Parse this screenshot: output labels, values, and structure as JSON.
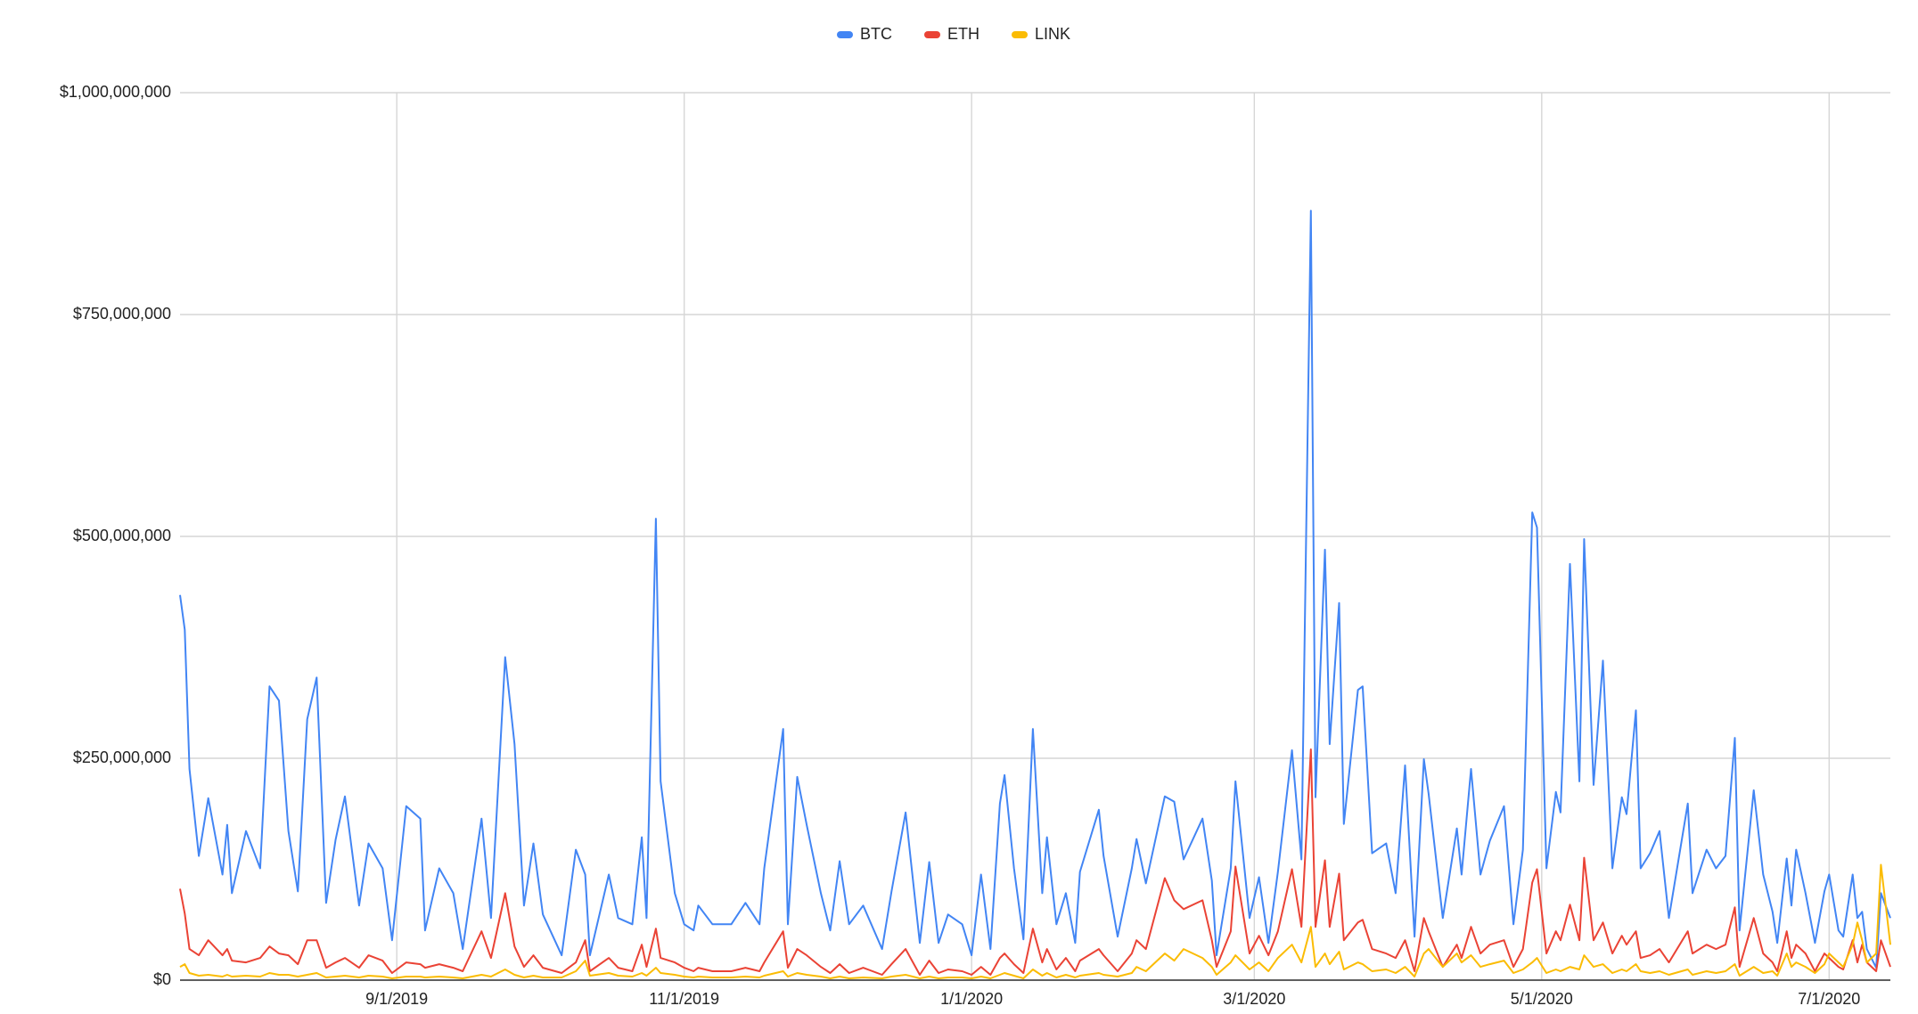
{
  "chart_data": {
    "type": "line",
    "x": [
      "7/17/2019",
      "7/18/2019",
      "7/19/2019",
      "7/21/2019",
      "7/23/2019",
      "7/26/2019",
      "7/27/2019",
      "7/28/2019",
      "7/31/2019",
      "8/3/2019",
      "8/5/2019",
      "8/7/2019",
      "8/9/2019",
      "8/11/2019",
      "8/13/2019",
      "8/15/2019",
      "8/17/2019",
      "8/19/2019",
      "8/21/2019",
      "8/24/2019",
      "8/26/2019",
      "8/29/2019",
      "8/31/2019",
      "9/3/2019",
      "9/6/2019",
      "9/7/2019",
      "9/10/2019",
      "9/13/2019",
      "9/15/2019",
      "9/19/2019",
      "9/21/2019",
      "9/24/2019",
      "9/26/2019",
      "9/28/2019",
      "9/30/2019",
      "10/2/2019",
      "10/6/2019",
      "10/9/2019",
      "10/11/2019",
      "10/12/2019",
      "10/16/2019",
      "10/18/2019",
      "10/21/2019",
      "10/23/2019",
      "10/24/2019",
      "10/26/2019",
      "10/27/2019",
      "10/30/2019",
      "11/1/2019",
      "11/3/2019",
      "11/4/2019",
      "11/7/2019",
      "11/11/2019",
      "11/14/2019",
      "11/17/2019",
      "11/18/2019",
      "11/22/2019",
      "11/23/2019",
      "11/25/2019",
      "11/27/2019",
      "11/30/2019",
      "12/2/2019",
      "12/4/2019",
      "12/6/2019",
      "12/9/2019",
      "12/13/2019",
      "12/15/2019",
      "12/18/2019",
      "12/21/2019",
      "12/23/2019",
      "12/25/2019",
      "12/27/2019",
      "12/30/2019",
      "1/1/2020",
      "1/3/2020",
      "1/5/2020",
      "1/7/2020",
      "1/8/2020",
      "1/10/2020",
      "1/12/2020",
      "1/14/2020",
      "1/16/2020",
      "1/17/2020",
      "1/19/2020",
      "1/21/2020",
      "1/23/2020",
      "1/24/2020",
      "1/28/2020",
      "1/29/2020",
      "2/1/2020",
      "2/4/2020",
      "2/5/2020",
      "2/7/2020",
      "2/11/2020",
      "2/13/2020",
      "2/15/2020",
      "2/19/2020",
      "2/21/2020",
      "2/22/2020",
      "2/25/2020",
      "2/26/2020",
      "2/29/2020",
      "3/2/2020",
      "3/4/2020",
      "3/6/2020",
      "3/9/2020",
      "3/11/2020",
      "3/13/2020",
      "3/14/2020",
      "3/16/2020",
      "3/17/2020",
      "3/19/2020",
      "3/20/2020",
      "3/23/2020",
      "3/24/2020",
      "3/26/2020",
      "3/29/2020",
      "3/31/2020",
      "4/2/2020",
      "4/4/2020",
      "4/6/2020",
      "4/7/2020",
      "4/10/2020",
      "4/13/2020",
      "4/14/2020",
      "4/16/2020",
      "4/18/2020",
      "4/20/2020",
      "4/23/2020",
      "4/25/2020",
      "4/27/2020",
      "4/29/2020",
      "4/30/2020",
      "5/2/2020",
      "5/4/2020",
      "5/5/2020",
      "5/7/2020",
      "5/9/2020",
      "5/10/2020",
      "5/12/2020",
      "5/14/2020",
      "5/16/2020",
      "5/18/2020",
      "5/19/2020",
      "5/21/2020",
      "5/22/2020",
      "5/24/2020",
      "5/26/2020",
      "5/28/2020",
      "6/1/2020",
      "6/2/2020",
      "6/5/2020",
      "6/7/2020",
      "6/9/2020",
      "6/11/2020",
      "6/12/2020",
      "6/15/2020",
      "6/17/2020",
      "6/19/2020",
      "6/20/2020",
      "6/22/2020",
      "6/23/2020",
      "6/24/2020",
      "6/26/2020",
      "6/28/2020",
      "6/30/2020",
      "7/1/2020",
      "7/3/2020",
      "7/4/2020",
      "7/6/2020",
      "7/7/2020",
      "7/8/2020",
      "7/9/2020",
      "7/11/2020",
      "7/12/2020",
      "7/14/2020"
    ],
    "series": [
      {
        "name": "BTC",
        "color": "#4285f4",
        "values": [
          434000000,
          395000000,
          238000000,
          140000000,
          205000000,
          119000000,
          175000000,
          98000000,
          168000000,
          126000000,
          331000000,
          315000000,
          168000000,
          100000000,
          294000000,
          341000000,
          87000000,
          158000000,
          207000000,
          84000000,
          154000000,
          126000000,
          45000000,
          196000000,
          182000000,
          56000000,
          126000000,
          98000000,
          35000000,
          182000000,
          70000000,
          364000000,
          266000000,
          84000000,
          154000000,
          74000000,
          28000000,
          147000000,
          119000000,
          28000000,
          119000000,
          70000000,
          63000000,
          161000000,
          70000000,
          520000000,
          224000000,
          98000000,
          63000000,
          56000000,
          84000000,
          63000000,
          63000000,
          87000000,
          63000000,
          126000000,
          283000000,
          63000000,
          229000000,
          175000000,
          98000000,
          56000000,
          134000000,
          63000000,
          84000000,
          35000000,
          100000000,
          189000000,
          42000000,
          133000000,
          42000000,
          74000000,
          63000000,
          28000000,
          119000000,
          35000000,
          199000000,
          231000000,
          126000000,
          46000000,
          283000000,
          98000000,
          161000000,
          63000000,
          98000000,
          42000000,
          122000000,
          192000000,
          140000000,
          49000000,
          126000000,
          159000000,
          109000000,
          207000000,
          201000000,
          136000000,
          182000000,
          112000000,
          28000000,
          126000000,
          224000000,
          70000000,
          116000000,
          42000000,
          122000000,
          259000000,
          136000000,
          867000000,
          206000000,
          485000000,
          266000000,
          425000000,
          176000000,
          327000000,
          331000000,
          143000000,
          154000000,
          98000000,
          242000000,
          49000000,
          249000000,
          210000000,
          70000000,
          171000000,
          119000000,
          238000000,
          119000000,
          157000000,
          196000000,
          63000000,
          147000000,
          527000000,
          510000000,
          126000000,
          212000000,
          189000000,
          469000000,
          224000000,
          497000000,
          220000000,
          360000000,
          126000000,
          206000000,
          187000000,
          304000000,
          126000000,
          143000000,
          168000000,
          70000000,
          199000000,
          98000000,
          147000000,
          126000000,
          140000000,
          273000000,
          56000000,
          214000000,
          119000000,
          77000000,
          42000000,
          137000000,
          84000000,
          147000000,
          98000000,
          42000000,
          100000000,
          119000000,
          56000000,
          49000000,
          119000000,
          70000000,
          77000000,
          35000000,
          14000000,
          98000000,
          70000000
        ]
      },
      {
        "name": "ETH",
        "color": "#ea4335",
        "values": [
          103000000,
          75000000,
          35000000,
          28000000,
          45000000,
          28000000,
          35000000,
          22000000,
          20000000,
          25000000,
          38000000,
          30000000,
          28000000,
          18000000,
          45000000,
          45000000,
          14000000,
          20000000,
          25000000,
          14000000,
          28000000,
          22000000,
          8000000,
          20000000,
          18000000,
          14000000,
          18000000,
          14000000,
          10000000,
          55000000,
          25000000,
          98000000,
          38000000,
          15000000,
          28000000,
          14000000,
          8000000,
          20000000,
          45000000,
          10000000,
          25000000,
          14000000,
          10000000,
          40000000,
          15000000,
          58000000,
          25000000,
          20000000,
          14000000,
          10000000,
          14000000,
          10000000,
          10000000,
          14000000,
          10000000,
          20000000,
          55000000,
          14000000,
          35000000,
          28000000,
          15000000,
          8000000,
          18000000,
          8000000,
          14000000,
          6000000,
          18000000,
          35000000,
          6000000,
          22000000,
          8000000,
          12000000,
          10000000,
          6000000,
          15000000,
          6000000,
          25000000,
          30000000,
          18000000,
          8000000,
          58000000,
          20000000,
          35000000,
          12000000,
          25000000,
          10000000,
          22000000,
          35000000,
          28000000,
          10000000,
          30000000,
          45000000,
          35000000,
          115000000,
          90000000,
          80000000,
          90000000,
          45000000,
          15000000,
          55000000,
          128000000,
          30000000,
          50000000,
          28000000,
          55000000,
          125000000,
          60000000,
          260000000,
          60000000,
          135000000,
          60000000,
          120000000,
          45000000,
          65000000,
          68000000,
          35000000,
          30000000,
          25000000,
          45000000,
          10000000,
          70000000,
          55000000,
          15000000,
          40000000,
          25000000,
          60000000,
          30000000,
          40000000,
          45000000,
          15000000,
          35000000,
          110000000,
          125000000,
          30000000,
          55000000,
          45000000,
          85000000,
          45000000,
          138000000,
          45000000,
          65000000,
          30000000,
          50000000,
          40000000,
          55000000,
          25000000,
          28000000,
          35000000,
          20000000,
          55000000,
          30000000,
          40000000,
          35000000,
          40000000,
          82000000,
          15000000,
          70000000,
          30000000,
          20000000,
          10000000,
          55000000,
          25000000,
          40000000,
          30000000,
          10000000,
          30000000,
          25000000,
          15000000,
          12000000,
          45000000,
          20000000,
          40000000,
          20000000,
          10000000,
          45000000,
          15000000
        ]
      },
      {
        "name": "LINK",
        "color": "#fbbc04",
        "values": [
          15000000,
          18000000,
          8000000,
          5000000,
          6000000,
          4000000,
          6000000,
          4000000,
          5000000,
          4000000,
          8000000,
          6000000,
          6000000,
          4000000,
          6000000,
          8000000,
          3000000,
          4000000,
          5000000,
          3000000,
          5000000,
          4000000,
          2000000,
          4000000,
          4000000,
          3000000,
          4000000,
          3000000,
          2000000,
          6000000,
          4000000,
          12000000,
          6000000,
          3000000,
          5000000,
          3000000,
          3000000,
          10000000,
          22000000,
          5000000,
          8000000,
          5000000,
          4000000,
          8000000,
          5000000,
          14000000,
          8000000,
          6000000,
          4000000,
          3000000,
          4000000,
          3000000,
          3000000,
          4000000,
          3000000,
          5000000,
          10000000,
          4000000,
          8000000,
          6000000,
          4000000,
          2000000,
          4000000,
          2000000,
          3000000,
          2000000,
          4000000,
          6000000,
          2000000,
          4000000,
          2000000,
          3000000,
          3000000,
          2000000,
          4000000,
          2000000,
          6000000,
          8000000,
          5000000,
          2000000,
          12000000,
          5000000,
          8000000,
          3000000,
          6000000,
          3000000,
          5000000,
          8000000,
          6000000,
          4000000,
          8000000,
          15000000,
          10000000,
          30000000,
          22000000,
          35000000,
          25000000,
          15000000,
          6000000,
          20000000,
          28000000,
          12000000,
          20000000,
          10000000,
          25000000,
          40000000,
          20000000,
          60000000,
          15000000,
          30000000,
          18000000,
          32000000,
          12000000,
          20000000,
          18000000,
          10000000,
          12000000,
          8000000,
          15000000,
          4000000,
          30000000,
          35000000,
          15000000,
          30000000,
          20000000,
          28000000,
          15000000,
          18000000,
          22000000,
          8000000,
          12000000,
          20000000,
          25000000,
          8000000,
          12000000,
          10000000,
          15000000,
          12000000,
          28000000,
          15000000,
          18000000,
          8000000,
          12000000,
          10000000,
          18000000,
          10000000,
          8000000,
          10000000,
          6000000,
          12000000,
          6000000,
          10000000,
          8000000,
          10000000,
          18000000,
          5000000,
          15000000,
          8000000,
          10000000,
          5000000,
          30000000,
          15000000,
          20000000,
          15000000,
          8000000,
          18000000,
          30000000,
          20000000,
          15000000,
          40000000,
          65000000,
          45000000,
          20000000,
          30000000,
          130000000,
          40000000
        ]
      }
    ],
    "xlim": [
      "7/17/2019",
      "7/14/2020"
    ],
    "xticks": [
      "9/1/2019",
      "11/1/2019",
      "1/1/2020",
      "3/1/2020",
      "5/1/2020",
      "7/1/2020"
    ],
    "ylim": [
      0,
      1000000000
    ],
    "yticks": [
      {
        "value": 0,
        "label": "$0"
      },
      {
        "value": 250000000,
        "label": "$250,000,000"
      },
      {
        "value": 500000000,
        "label": "$500,000,000"
      },
      {
        "value": 750000000,
        "label": "$750,000,000"
      },
      {
        "value": 1000000000,
        "label": "$1,000,000,000"
      }
    ],
    "grid": true,
    "legend": "top"
  }
}
